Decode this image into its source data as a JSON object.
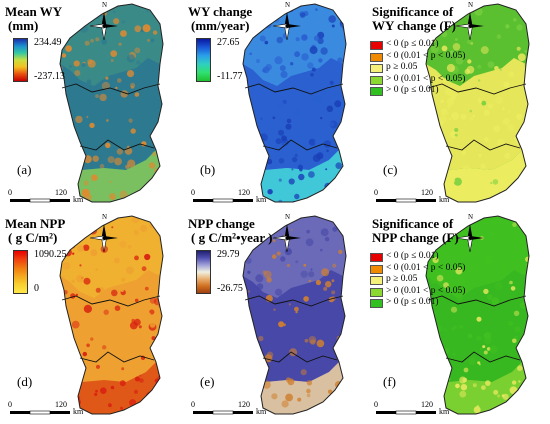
{
  "panels": [
    {
      "id": "a",
      "title_line1": "Mean WY",
      "title_line2": "(mm)",
      "colorbar": {
        "max": "234.49",
        "min": "-237.13",
        "colors": [
          "#1a2fa8",
          "#1e8fd0",
          "#35c9a0",
          "#c8e040",
          "#f5c020",
          "#e85010",
          "#c80000"
        ]
      },
      "fill": {
        "north": "#3a8a88",
        "mid": "#2d7a90",
        "south": "#7ac060",
        "spots": "#e08a30"
      },
      "panel_label": "(a)",
      "scale": {
        "zero": "0",
        "dist": "120",
        "unit": "km"
      }
    },
    {
      "id": "b",
      "title_line1": "WY change",
      "title_line2": "(mm/year)",
      "colorbar": {
        "max": "27.65",
        "min": "-11.77",
        "colors": [
          "#0a1aa0",
          "#1a58d8",
          "#2aa0e8",
          "#30d0c0",
          "#30e070",
          "#20c030"
        ]
      },
      "fill": {
        "north": "#3a8ae0",
        "mid": "#2a60d0",
        "south": "#40c8d8",
        "spots": "#1a40b8"
      },
      "panel_label": "(b)",
      "scale": {
        "zero": "0",
        "dist": "120",
        "unit": "km"
      }
    },
    {
      "id": "c",
      "title_line1": "Significance of",
      "title_line2": "WY change (F)",
      "legend": [
        {
          "color": "#e80000",
          "text": "< 0 (p ≤ 0.01)"
        },
        {
          "color": "#f08a00",
          "text": "< 0 (0.01 < p < 0.05)"
        },
        {
          "color": "#f5f07a",
          "text": "p ≥ 0.05"
        },
        {
          "color": "#8ad830",
          "text": "> 0 (0.01 < p < 0.05)"
        },
        {
          "color": "#30c020",
          "text": "> 0 (p ≤ 0.01)"
        }
      ],
      "fill": {
        "north": "#5ac030",
        "mid": "#e6e65a",
        "south": "#ecec60",
        "spots": "#7ad040"
      },
      "panel_label": "(c)",
      "scale": {
        "zero": "0",
        "dist": "120",
        "unit": "km"
      }
    },
    {
      "id": "d",
      "title_line1": "Mean NPP",
      "title_line2": "( g C/m²)",
      "colorbar": {
        "max": "1090.25",
        "min": "0",
        "colors": [
          "#e80000",
          "#f04010",
          "#f07a10",
          "#f5a820",
          "#f8d030",
          "#ffe84a"
        ]
      },
      "fill": {
        "north": "#f0b030",
        "mid": "#eea030",
        "south": "#e05818",
        "spots": "#d82010"
      },
      "panel_label": "(d)",
      "scale": {
        "zero": "0",
        "dist": "120",
        "unit": "km"
      }
    },
    {
      "id": "e",
      "title_line1": "NPP change",
      "title_line2": "( g C/m²•year )",
      "colorbar": {
        "max": "29.79",
        "min": "-26.75",
        "colors": [
          "#202070",
          "#5050b0",
          "#a0a0d8",
          "#f0f0e0",
          "#e8b070",
          "#d07020",
          "#a04010"
        ]
      },
      "fill": {
        "north": "#6a6ab8",
        "mid": "#4848a8",
        "south": "#d8c0a0",
        "spots": "#d08030"
      },
      "panel_label": "(e)",
      "scale": {
        "zero": "0",
        "dist": "120",
        "unit": "km"
      }
    },
    {
      "id": "f",
      "title_line1": "Significance of",
      "title_line2": "NPP change (F)",
      "legend": [
        {
          "color": "#e80000",
          "text": "< 0 (p ≤ 0.01)"
        },
        {
          "color": "#f08a00",
          "text": "< 0 (0.01 < p < 0.05)"
        },
        {
          "color": "#f5f07a",
          "text": "p ≥ 0.05"
        },
        {
          "color": "#8ad830",
          "text": "> 0 (0.01 < p < 0.05)"
        },
        {
          "color": "#30c020",
          "text": "> 0 (p ≤ 0.01)"
        }
      ],
      "fill": {
        "north": "#40c020",
        "mid": "#38b820",
        "south": "#7ad030",
        "spots": "#e8e860"
      },
      "panel_label": "(f)",
      "scale": {
        "zero": "0",
        "dist": "120",
        "unit": "km"
      }
    }
  ],
  "north_arrow": {
    "label": "N",
    "icon": "north-arrow-icon"
  }
}
